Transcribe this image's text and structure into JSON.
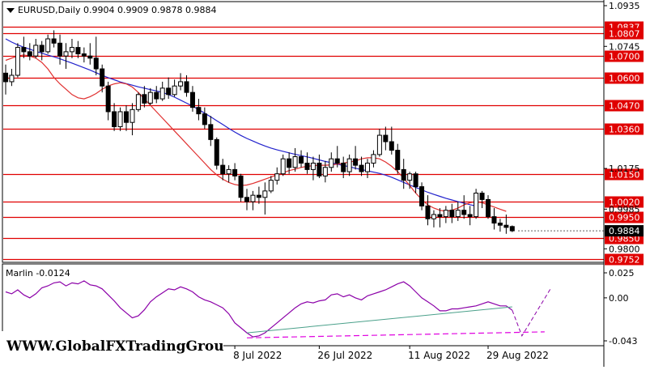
{
  "header": {
    "symbol_text": "EURUSD,Daily",
    "ohlc_text": "0.9904 0.9909 0.9878 0.9884"
  },
  "watermark": "WWW.GlobalFXTradingGroup.Com",
  "colors": {
    "background": "#ffffff",
    "level_line": "#e00000",
    "level_label_bg": "#e00000",
    "current_price_bg": "#000000",
    "ma_slow": "#2222cc",
    "ma_fast": "#e03030",
    "oscillator": "#8b00a8",
    "oscillator_trend_upper": "#4aa08a",
    "oscillator_trend_lower": "#e000e0"
  },
  "chart_data": [
    {
      "type": "candlestick",
      "title": "EURUSD,Daily",
      "ohlc_readout": [
        0.9904,
        0.9909,
        0.9878,
        0.9884
      ],
      "ylim": [
        0.9752,
        1.0935
      ],
      "y_tick_labels": [
        "1.0935",
        "1.0745",
        "1.0175",
        "0.9985",
        "0.9800"
      ],
      "x_tick_labels": [
        "8 Jul 2022",
        "26 Jul 2022",
        "11 Aug 2022",
        "29 Aug 2022"
      ],
      "levels": [
        {
          "value": 1.0837,
          "label": "1.0837"
        },
        {
          "value": 1.0807,
          "label": "1.0807"
        },
        {
          "value": 1.07,
          "label": "1.0700"
        },
        {
          "value": 1.06,
          "label": "1.0600"
        },
        {
          "value": 1.047,
          "label": "1.0470"
        },
        {
          "value": 1.036,
          "label": "1.0360"
        },
        {
          "value": 1.015,
          "label": "1.0150"
        },
        {
          "value": 1.002,
          "label": "1.0020"
        },
        {
          "value": 0.995,
          "label": "0.9950"
        },
        {
          "value": 0.985,
          "label": "0.9850"
        },
        {
          "value": 0.9752,
          "label": "0.9752"
        }
      ],
      "current_price": {
        "value": 0.9884,
        "label": "0.9884"
      },
      "candles": [
        [
          1.062,
          1.066,
          1.052,
          1.058
        ],
        [
          1.058,
          1.064,
          1.056,
          1.061
        ],
        [
          1.061,
          1.076,
          1.06,
          1.074
        ],
        [
          1.074,
          1.079,
          1.069,
          1.072
        ],
        [
          1.072,
          1.076,
          1.068,
          1.07
        ],
        [
          1.07,
          1.078,
          1.069,
          1.075
        ],
        [
          1.075,
          1.077,
          1.068,
          1.072
        ],
        [
          1.072,
          1.08,
          1.071,
          1.078
        ],
        [
          1.078,
          1.082,
          1.074,
          1.076
        ],
        [
          1.076,
          1.08,
          1.066,
          1.07
        ],
        [
          1.07,
          1.076,
          1.064,
          1.072
        ],
        [
          1.072,
          1.078,
          1.069,
          1.074
        ],
        [
          1.074,
          1.077,
          1.069,
          1.071
        ],
        [
          1.071,
          1.074,
          1.067,
          1.07
        ],
        [
          1.07,
          1.076,
          1.066,
          1.069
        ],
        [
          1.069,
          1.079,
          1.061,
          1.064
        ],
        [
          1.064,
          1.066,
          1.053,
          1.056
        ],
        [
          1.056,
          1.058,
          1.04,
          1.044
        ],
        [
          1.044,
          1.048,
          1.035,
          1.037
        ],
        [
          1.037,
          1.046,
          1.035,
          1.044
        ],
        [
          1.044,
          1.047,
          1.035,
          1.039
        ],
        [
          1.039,
          1.048,
          1.033,
          1.045
        ],
        [
          1.045,
          1.053,
          1.044,
          1.052
        ],
        [
          1.052,
          1.056,
          1.046,
          1.048
        ],
        [
          1.048,
          1.055,
          1.047,
          1.053
        ],
        [
          1.053,
          1.056,
          1.048,
          1.05
        ],
        [
          1.05,
          1.058,
          1.049,
          1.055
        ],
        [
          1.055,
          1.06,
          1.05,
          1.052
        ],
        [
          1.052,
          1.059,
          1.051,
          1.056
        ],
        [
          1.056,
          1.062,
          1.054,
          1.058
        ],
        [
          1.058,
          1.061,
          1.051,
          1.053
        ],
        [
          1.053,
          1.056,
          1.044,
          1.046
        ],
        [
          1.046,
          1.05,
          1.04,
          1.043
        ],
        [
          1.043,
          1.046,
          1.036,
          1.038
        ],
        [
          1.038,
          1.042,
          1.028,
          1.031
        ],
        [
          1.031,
          1.032,
          1.017,
          1.019
        ],
        [
          1.019,
          1.022,
          1.012,
          1.015
        ],
        [
          1.015,
          1.019,
          1.011,
          1.017
        ],
        [
          1.017,
          1.02,
          1.012,
          1.014
        ],
        [
          1.014,
          1.015,
          1.002,
          1.004
        ],
        [
          1.004,
          1.008,
          0.998,
          1.002
        ],
        [
          1.002,
          1.007,
          0.998,
          1.005
        ],
        [
          1.005,
          1.009,
          1.001,
          1.004
        ],
        [
          1.004,
          1.011,
          0.996,
          1.007
        ],
        [
          1.007,
          1.014,
          1.006,
          1.012
        ],
        [
          1.012,
          1.018,
          1.01,
          1.015
        ],
        [
          1.015,
          1.024,
          1.014,
          1.022
        ],
        [
          1.022,
          1.025,
          1.015,
          1.018
        ],
        [
          1.018,
          1.027,
          1.016,
          1.023
        ],
        [
          1.023,
          1.026,
          1.018,
          1.02
        ],
        [
          1.02,
          1.025,
          1.015,
          1.017
        ],
        [
          1.017,
          1.023,
          1.012,
          1.02
        ],
        [
          1.02,
          1.024,
          1.013,
          1.014
        ],
        [
          1.014,
          1.021,
          1.011,
          1.018
        ],
        [
          1.018,
          1.025,
          1.016,
          1.022
        ],
        [
          1.022,
          1.028,
          1.018,
          1.02
        ],
        [
          1.02,
          1.023,
          1.013,
          1.016
        ],
        [
          1.016,
          1.024,
          1.014,
          1.022
        ],
        [
          1.022,
          1.028,
          1.017,
          1.019
        ],
        [
          1.019,
          1.023,
          1.014,
          1.016
        ],
        [
          1.016,
          1.022,
          1.013,
          1.02
        ],
        [
          1.02,
          1.026,
          1.018,
          1.024
        ],
        [
          1.024,
          1.036,
          1.023,
          1.033
        ],
        [
          1.033,
          1.037,
          1.026,
          1.03
        ],
        [
          1.03,
          1.037,
          1.024,
          1.026
        ],
        [
          1.026,
          1.029,
          1.015,
          1.017
        ],
        [
          1.017,
          1.022,
          1.008,
          1.012
        ],
        [
          1.012,
          1.016,
          1.008,
          1.015
        ],
        [
          1.015,
          1.016,
          1.006,
          1.009
        ],
        [
          1.009,
          1.011,
          0.998,
          1.0
        ],
        [
          1.0,
          1.005,
          0.991,
          0.994
        ],
        [
          0.994,
          0.998,
          0.99,
          0.996
        ],
        [
          0.996,
          0.999,
          0.99,
          0.995
        ],
        [
          0.995,
          1.0,
          0.992,
          0.998
        ],
        [
          0.998,
          1.001,
          0.992,
          0.995
        ],
        [
          0.995,
          1.002,
          0.993,
          0.998
        ],
        [
          0.998,
          1.005,
          0.994,
          0.996
        ],
        [
          0.996,
          1.0,
          0.991,
          0.995
        ],
        [
          0.995,
          1.008,
          0.994,
          1.006
        ],
        [
          1.006,
          1.007,
          0.999,
          1.003
        ],
        [
          1.003,
          1.005,
          0.994,
          0.995
        ],
        [
          0.995,
          0.999,
          0.989,
          0.992
        ],
        [
          0.992,
          0.994,
          0.988,
          0.991
        ],
        [
          0.991,
          0.996,
          0.987,
          0.99
        ],
        [
          0.9904,
          0.9909,
          0.9878,
          0.9884
        ]
      ],
      "series": [
        {
          "values": [
            1.078,
            1.0765,
            1.0752,
            1.0741,
            1.0732,
            1.0722,
            1.0713,
            1.0704,
            1.0696,
            1.0687,
            1.0677,
            1.0667,
            1.0656,
            1.0645,
            1.0634,
            1.0622,
            1.061,
            1.0599,
            1.0589,
            1.0579,
            1.0571,
            1.0564,
            1.0556,
            1.055,
            1.0543,
            1.0537,
            1.053,
            1.052,
            1.0508,
            1.0494,
            1.048,
            1.0466,
            1.045,
            1.0433,
            1.0416,
            1.0398,
            1.038,
            1.0362,
            1.0345,
            1.0329,
            1.0315,
            1.0303,
            1.0291,
            1.028,
            1.027,
            1.0262,
            1.0255,
            1.0248,
            1.0241,
            1.0235,
            1.0229,
            1.0222,
            1.0215,
            1.0208,
            1.0202,
            1.0195,
            1.0189,
            1.0183,
            1.0176,
            1.017,
            1.0164,
            1.0158,
            1.0152,
            1.0144,
            1.0134,
            1.0122,
            1.011,
            1.0098,
            1.0087,
            1.0075,
            1.0064,
            1.0054,
            1.0045,
            1.0036,
            1.0028,
            1.002,
            1.0013,
            1.0006,
            1.0
          ]
        },
        {
          "values": [
            1.068,
            1.069,
            1.07,
            1.0705,
            1.07,
            1.069,
            1.067,
            1.064,
            1.06,
            1.057,
            1.0545,
            1.052,
            1.0505,
            1.05,
            1.051,
            1.0525,
            1.0545,
            1.056,
            1.057,
            1.0575,
            1.057,
            1.0555,
            1.053,
            1.05,
            1.047,
            1.044,
            1.041,
            1.038,
            1.035,
            1.032,
            1.029,
            1.026,
            1.023,
            1.02,
            1.017,
            1.0145,
            1.0125,
            1.011,
            1.01,
            1.0095,
            1.0098,
            1.0105,
            1.0115,
            1.0125,
            1.0135,
            1.0145,
            1.0155,
            1.0165,
            1.0172,
            1.018,
            1.0185,
            1.0188,
            1.019,
            1.019,
            1.0192,
            1.0195,
            1.02,
            1.0205,
            1.021,
            1.022,
            1.0225,
            1.0225,
            1.022,
            1.0205,
            1.0185,
            1.016,
            1.013,
            1.0095,
            1.006,
            1.003,
            1.0005,
            0.999,
            0.998,
            0.9975,
            0.998,
            0.999,
            1.0005,
            1.0015,
            1.002,
            1.0015,
            1.0005,
            0.9995,
            0.9985,
            0.9975
          ]
        }
      ]
    },
    {
      "type": "line",
      "title": "Marlin -0.0124",
      "ylim": [
        -0.043,
        0.025
      ],
      "y_tick_labels": [
        "0.025",
        "0.00",
        "-0.043"
      ],
      "series": [
        {
          "values": [
            0.006,
            0.004,
            0.008,
            0.003,
            0.0,
            0.004,
            0.01,
            0.012,
            0.015,
            0.016,
            0.012,
            0.015,
            0.014,
            0.017,
            0.013,
            0.012,
            0.009,
            0.003,
            -0.003,
            -0.01,
            -0.015,
            -0.02,
            -0.018,
            -0.012,
            -0.004,
            0.001,
            0.005,
            0.009,
            0.008,
            0.011,
            0.009,
            0.006,
            0.001,
            -0.002,
            -0.004,
            -0.007,
            -0.01,
            -0.016,
            -0.025,
            -0.03,
            -0.035,
            -0.039,
            -0.038,
            -0.035,
            -0.03,
            -0.025,
            -0.02,
            -0.015,
            -0.01,
            -0.006,
            -0.004,
            -0.005,
            -0.003,
            -0.002,
            0.003,
            0.004,
            0.001,
            0.003,
            0.0,
            -0.002,
            0.002,
            0.004,
            0.006,
            0.008,
            0.011,
            0.014,
            0.016,
            0.012,
            0.006,
            0.0,
            -0.004,
            -0.008,
            -0.013,
            -0.013,
            -0.011,
            -0.011,
            -0.01,
            -0.009,
            -0.008,
            -0.006,
            -0.004,
            -0.006,
            -0.008,
            -0.008,
            -0.0124
          ]
        }
      ],
      "trendlines": [
        "upper-support",
        "lower-support",
        "projected-path"
      ]
    }
  ]
}
